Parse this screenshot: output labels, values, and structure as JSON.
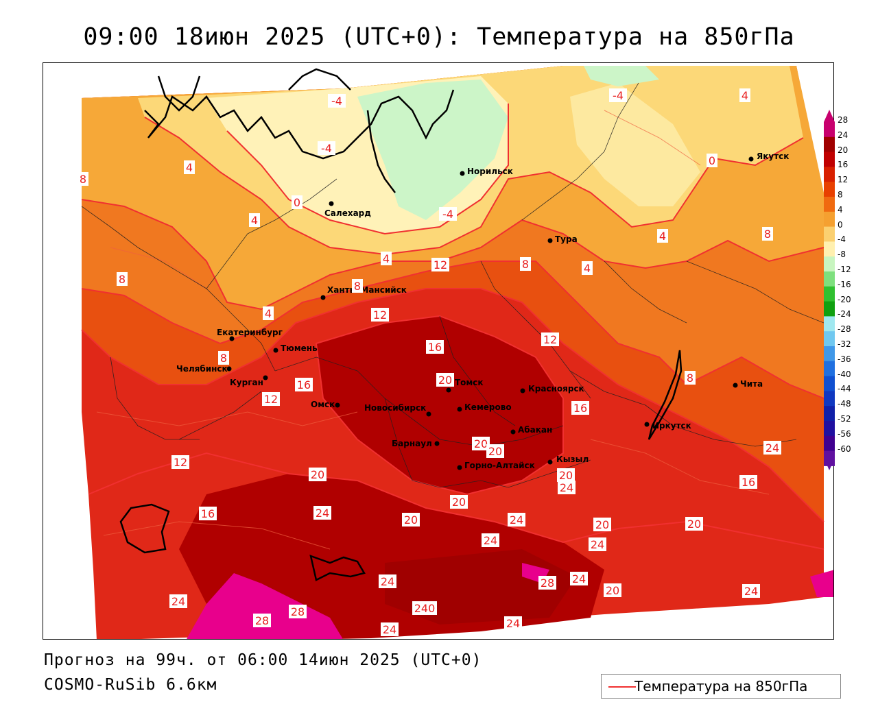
{
  "title": "09:00 18июн 2025 (UTC+0): Температура на 850гПа",
  "footer": {
    "forecast": "Прогноз на 99ч. от 06:00 14июн 2025 (UTC+0)",
    "model": "COSMO-RuSib 6.6км"
  },
  "legend": {
    "label": "Температура на 850гПа",
    "line_color": "#f03030"
  },
  "colorbar": {
    "ticks": [
      "28",
      "24",
      "20",
      "16",
      "12",
      "8",
      "4",
      "0",
      "-4",
      "-8",
      "-12",
      "-16",
      "-20",
      "-24",
      "-28",
      "-32",
      "-36",
      "-40",
      "-44",
      "-48",
      "-52",
      "-56",
      "-60"
    ],
    "colors": [
      "#c8006e",
      "#a00000",
      "#c00000",
      "#d82000",
      "#e84000",
      "#f06a10",
      "#f5a030",
      "#fbd070",
      "#fff0b0",
      "#c8f5c0",
      "#7ee07e",
      "#30c030",
      "#10a010",
      "#a0e8f0",
      "#70c8f0",
      "#4098e8",
      "#2070e0",
      "#1050d0",
      "#1038c0",
      "#1020a8",
      "#2010a0",
      "#400090",
      "#6010a0"
    ]
  },
  "cities": [
    {
      "name": "Норильск"
    },
    {
      "name": "Салехард"
    },
    {
      "name": "Якутск"
    },
    {
      "name": "Тура"
    },
    {
      "name": "Ханты-Мансийск"
    },
    {
      "name": "Екатеринбург"
    },
    {
      "name": "Тюмень"
    },
    {
      "name": "Челябинск"
    },
    {
      "name": "Курган"
    },
    {
      "name": "Омск"
    },
    {
      "name": "Новосибирск"
    },
    {
      "name": "Томск"
    },
    {
      "name": "Кемерово"
    },
    {
      "name": "Красноярск"
    },
    {
      "name": "Абакан"
    },
    {
      "name": "Барнаул"
    },
    {
      "name": "Горно-Алтайск"
    },
    {
      "name": "Кызыл"
    },
    {
      "name": "Иркутск"
    },
    {
      "name": "Чита"
    }
  ],
  "isotherm_labels": [
    "-4",
    "-4",
    "-4",
    "-4",
    "4",
    "0",
    "4",
    "8",
    "0",
    "4",
    "4",
    "8",
    "4",
    "8",
    "12",
    "4",
    "4",
    "8",
    "8",
    "8",
    "8",
    "12",
    "16",
    "12",
    "16",
    "16",
    "20",
    "20",
    "20",
    "20",
    "12",
    "12",
    "16",
    "20",
    "24",
    "20",
    "24",
    "24",
    "16",
    "20",
    "24",
    "24",
    "20",
    "24",
    "28",
    "24",
    "20",
    "20",
    "24",
    "24",
    "28",
    "28",
    "24",
    "24",
    "240",
    "24"
  ]
}
